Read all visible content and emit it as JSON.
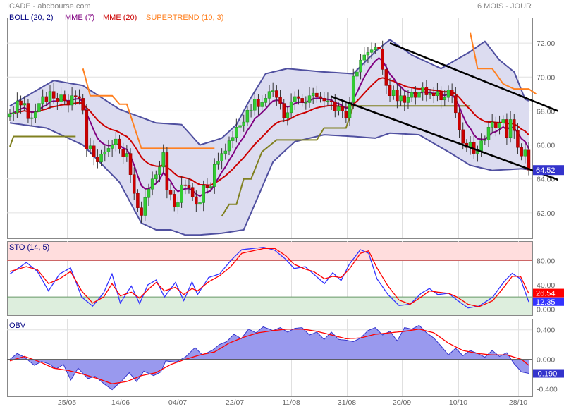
{
  "header": {
    "title": "ICADE - abcbourse.com",
    "period": "6 MOIS - JOUR"
  },
  "colors": {
    "price_up": "#33cc33",
    "price_down": "#cc0000",
    "boll_band": "#5050a0",
    "boll_fill": "#dcdcf0",
    "mme7": "#800080",
    "mme20": "#cc0000",
    "supertrend_up": "#808020",
    "supertrend_down": "#ff8020",
    "channel": "#000000",
    "sto_k": "#3333ff",
    "sto_d": "#ff0000",
    "sto_overbought_zone": "#ffdddd",
    "sto_oversold_zone": "#ddeedd",
    "obv_fill": "#9999ee",
    "obv_line": "#3333cc",
    "obv_signal": "#ff0000"
  },
  "chart_data": [
    {
      "type": "candlestick",
      "legend": [
        "BOLL (20, 2)",
        "MME (7)",
        "MME (20)",
        "SUPERTREND (10, 3)"
      ],
      "y_ticks": [
        "72.00",
        "70.00",
        "68.00",
        "66.00",
        "64.00",
        "62.00"
      ],
      "ylim": [
        60.5,
        73.5
      ],
      "last_price_label": "64.52",
      "x_ticks": [
        "25/05",
        "14/06",
        "04/07",
        "22/07",
        "11/08",
        "31/08",
        "20/09",
        "10/10",
        "28/10"
      ],
      "closes": [
        67.85,
        67.9,
        68.6,
        68.35,
        68.45,
        67.55,
        67.6,
        67.95,
        68.45,
        68.85,
        68.55,
        69.15,
        68.75,
        68.55,
        68.95,
        68.6,
        68.35,
        68.9,
        68.85,
        68.75,
        68.05,
        65.75,
        65.95,
        65.3,
        65.0,
        65.45,
        65.6,
        65.8,
        66.0,
        66.35,
        65.75,
        65.3,
        65.5,
        64.25,
        63.15,
        62.3,
        61.85,
        62.9,
        63.4,
        64.0,
        64.25,
        64.7,
        65.55,
        63.35,
        63.1,
        62.35,
        62.6,
        63.65,
        63.6,
        63.5,
        62.95,
        62.5,
        62.6,
        63.6,
        63.5,
        63.55,
        64.85,
        65.05,
        65.5,
        65.65,
        66.25,
        66.45,
        67.05,
        67.15,
        67.35,
        68.05,
        68.05,
        68.7,
        68.25,
        68.5,
        68.75,
        69.15,
        69.2,
        68.8,
        68.45,
        67.6,
        67.9,
        68.55,
        68.85,
        68.75,
        68.5,
        68.5,
        68.9,
        69.05,
        68.85,
        68.75,
        68.6,
        68.6,
        68.55,
        68.0,
        68.25,
        68.0,
        67.6,
        68.5,
        70.05,
        70.3,
        71.0,
        71.3,
        71.45,
        71.6,
        71.75,
        71.65,
        70.45,
        69.5,
        68.9,
        69.25,
        68.6,
        68.9,
        68.5,
        68.8,
        69.1,
        68.8,
        69.1,
        69.4,
        68.95,
        69.05,
        68.9,
        69.15,
        68.65,
        68.8,
        69.25,
        68.9,
        67.9,
        66.9,
        66.1,
        65.85,
        66.15,
        65.5,
        65.65,
        66.25,
        66.3,
        67.05,
        67.35,
        67.0,
        67.3,
        67.5,
        66.45,
        67.5,
        66.85,
        65.85,
        65.35,
        65.7,
        64.52
      ],
      "bollinger": {
        "upper_anchors": [
          [
            0,
            68.3
          ],
          [
            12,
            69.8
          ],
          [
            20,
            69.5
          ],
          [
            30,
            68.1
          ],
          [
            40,
            67.3
          ],
          [
            47,
            67.2
          ],
          [
            52,
            66.0
          ],
          [
            58,
            66.4
          ],
          [
            62,
            67.2
          ],
          [
            66,
            68.8
          ],
          [
            70,
            70.2
          ],
          [
            76,
            70.5
          ],
          [
            86,
            70.3
          ],
          [
            94,
            70.2
          ],
          [
            100,
            71.5
          ],
          [
            104,
            72.2
          ],
          [
            110,
            71.3
          ],
          [
            118,
            70.5
          ],
          [
            126,
            71.5
          ],
          [
            130,
            72.1
          ],
          [
            134,
            71.0
          ],
          [
            138,
            70.3
          ],
          [
            141,
            68.7
          ],
          [
            144,
            68.4
          ]
        ],
        "lower_anchors": [
          [
            0,
            67.3
          ],
          [
            10,
            67.0
          ],
          [
            20,
            66.0
          ],
          [
            30,
            63.8
          ],
          [
            36,
            61.4
          ],
          [
            40,
            61.0
          ],
          [
            44,
            61.0
          ],
          [
            48,
            60.7
          ],
          [
            52,
            60.7
          ],
          [
            58,
            60.8
          ],
          [
            64,
            61.0
          ],
          [
            68,
            63.0
          ],
          [
            72,
            65.0
          ],
          [
            78,
            66.2
          ],
          [
            86,
            66.6
          ],
          [
            94,
            66.5
          ],
          [
            100,
            66.4
          ],
          [
            104,
            66.7
          ],
          [
            112,
            66.6
          ],
          [
            120,
            65.6
          ],
          [
            126,
            64.8
          ],
          [
            132,
            64.5
          ],
          [
            140,
            64.6
          ],
          [
            144,
            64.5
          ]
        ]
      },
      "supertrend": [
        {
          "color_key": "supertrend_up",
          "anchors": [
            [
              0,
              65.9
            ],
            [
              1,
              66.5
            ],
            [
              18,
              66.5
            ]
          ]
        },
        {
          "color_key": "supertrend_down",
          "anchors": [
            [
              20,
              70.5
            ],
            [
              22,
              68.9
            ],
            [
              28,
              68.9
            ],
            [
              30,
              68.4
            ],
            [
              32,
              68.4
            ],
            [
              34,
              67.1
            ],
            [
              36,
              65.8
            ],
            [
              56,
              65.8
            ]
          ]
        },
        {
          "color_key": "supertrend_up",
          "anchors": [
            [
              58,
              61.8
            ],
            [
              60,
              62.5
            ],
            [
              62,
              62.5
            ],
            [
              64,
              64.0
            ],
            [
              66,
              64.0
            ],
            [
              69,
              65.6
            ],
            [
              73,
              66.3
            ],
            [
              84,
              66.3
            ],
            [
              86,
              67.0
            ],
            [
              92,
              67.0
            ],
            [
              94,
              68.3
            ],
            [
              126,
              68.3
            ]
          ]
        },
        {
          "color_key": "supertrend_down",
          "anchors": [
            [
              126,
              72.6
            ],
            [
              128,
              70.5
            ],
            [
              132,
              70.5
            ],
            [
              135,
              69.6
            ],
            [
              138,
              69.3
            ],
            [
              142,
              69.3
            ],
            [
              144,
              69.0
            ]
          ]
        }
      ],
      "channel_upper": [
        [
          104,
          72.0
        ],
        [
          150,
          68.0
        ]
      ],
      "channel_lower": [
        [
          88,
          68.85
        ],
        [
          150,
          63.95
        ]
      ]
    },
    {
      "type": "line",
      "legend": "STO (14, 5)",
      "y_ticks": [
        "80.00",
        "40.00",
        "0.000"
      ],
      "ylim": [
        -10,
        112
      ],
      "overbought": 80,
      "oversold": 20,
      "k_label": "12.35",
      "d_label": "26.54",
      "k_anchors": [
        [
          0,
          58
        ],
        [
          6,
          77
        ],
        [
          10,
          62
        ],
        [
          14,
          30
        ],
        [
          18,
          58
        ],
        [
          22,
          68
        ],
        [
          26,
          20
        ],
        [
          30,
          5
        ],
        [
          34,
          27
        ],
        [
          37,
          58
        ],
        [
          40,
          10
        ],
        [
          44,
          38
        ],
        [
          47,
          9
        ],
        [
          50,
          40
        ],
        [
          53,
          48
        ],
        [
          56,
          20
        ],
        [
          60,
          44
        ],
        [
          63,
          14
        ],
        [
          66,
          45
        ],
        [
          68,
          24
        ],
        [
          72,
          52
        ],
        [
          76,
          58
        ],
        [
          80,
          80
        ],
        [
          84,
          98
        ],
        [
          88,
          100
        ],
        [
          92,
          102
        ],
        [
          96,
          97
        ],
        [
          100,
          82
        ],
        [
          103,
          67
        ],
        [
          107,
          70
        ],
        [
          110,
          58
        ],
        [
          114,
          42
        ],
        [
          117,
          60
        ],
        [
          120,
          47
        ],
        [
          123,
          74
        ],
        [
          127,
          98
        ],
        [
          130,
          92
        ],
        [
          133,
          50
        ],
        [
          137,
          24
        ],
        [
          141,
          6
        ],
        [
          145,
          8
        ],
        [
          149,
          26
        ],
        [
          152,
          34
        ],
        [
          155,
          24
        ],
        [
          159,
          26
        ],
        [
          162,
          15
        ],
        [
          166,
          2
        ],
        [
          170,
          5
        ],
        [
          175,
          20
        ],
        [
          179,
          45
        ],
        [
          182,
          59
        ],
        [
          185,
          50
        ],
        [
          188,
          12
        ]
      ],
      "d_anchors": [
        [
          0,
          62
        ],
        [
          6,
          70
        ],
        [
          10,
          65
        ],
        [
          14,
          42
        ],
        [
          18,
          50
        ],
        [
          22,
          62
        ],
        [
          26,
          30
        ],
        [
          30,
          10
        ],
        [
          34,
          20
        ],
        [
          37,
          42
        ],
        [
          40,
          22
        ],
        [
          44,
          28
        ],
        [
          47,
          18
        ],
        [
          50,
          32
        ],
        [
          53,
          44
        ],
        [
          56,
          30
        ],
        [
          60,
          36
        ],
        [
          63,
          24
        ],
        [
          66,
          34
        ],
        [
          68,
          30
        ],
        [
          72,
          45
        ],
        [
          76,
          55
        ],
        [
          80,
          70
        ],
        [
          84,
          92
        ],
        [
          88,
          96
        ],
        [
          92,
          100
        ],
        [
          96,
          100
        ],
        [
          100,
          88
        ],
        [
          103,
          74
        ],
        [
          107,
          66
        ],
        [
          110,
          62
        ],
        [
          114,
          50
        ],
        [
          117,
          54
        ],
        [
          120,
          52
        ],
        [
          123,
          66
        ],
        [
          127,
          92
        ],
        [
          130,
          96
        ],
        [
          133,
          68
        ],
        [
          137,
          38
        ],
        [
          141,
          15
        ],
        [
          145,
          8
        ],
        [
          149,
          20
        ],
        [
          152,
          30
        ],
        [
          155,
          28
        ],
        [
          159,
          26
        ],
        [
          162,
          20
        ],
        [
          166,
          8
        ],
        [
          170,
          4
        ],
        [
          175,
          14
        ],
        [
          179,
          36
        ],
        [
          182,
          54
        ],
        [
          185,
          54
        ],
        [
          188,
          26
        ]
      ]
    },
    {
      "type": "area",
      "legend": "OBV",
      "y_ticks": [
        "0.400",
        "0.000",
        "-0.400"
      ],
      "ylim": [
        -0.5,
        0.55
      ],
      "last_label": "-0.190",
      "obv_anchors": [
        [
          0,
          0.0
        ],
        [
          3,
          0.08
        ],
        [
          6,
          0.03
        ],
        [
          10,
          -0.08
        ],
        [
          13,
          -0.03
        ],
        [
          16,
          -0.06
        ],
        [
          19,
          -0.13
        ],
        [
          22,
          -0.07
        ],
        [
          25,
          -0.28
        ],
        [
          28,
          -0.12
        ],
        [
          32,
          -0.26
        ],
        [
          35,
          -0.23
        ],
        [
          39,
          -0.34
        ],
        [
          42,
          -0.41
        ],
        [
          46,
          -0.29
        ],
        [
          49,
          -0.18
        ],
        [
          52,
          -0.3
        ],
        [
          55,
          -0.16
        ],
        [
          59,
          -0.22
        ],
        [
          62,
          -0.17
        ],
        [
          64,
          -0.02
        ],
        [
          68,
          -0.04
        ],
        [
          72,
          0.03
        ],
        [
          76,
          0.16
        ],
        [
          79,
          0.06
        ],
        [
          83,
          0.12
        ],
        [
          86,
          0.2
        ],
        [
          89,
          0.24
        ],
        [
          92,
          0.34
        ],
        [
          95,
          0.28
        ],
        [
          98,
          0.41
        ],
        [
          101,
          0.36
        ],
        [
          104,
          0.44
        ],
        [
          108,
          0.39
        ],
        [
          111,
          0.43
        ],
        [
          114,
          0.37
        ],
        [
          117,
          0.42
        ],
        [
          120,
          0.43
        ],
        [
          123,
          0.33
        ],
        [
          126,
          0.37
        ],
        [
          129,
          0.27
        ],
        [
          132,
          0.37
        ],
        [
          135,
          0.27
        ],
        [
          138,
          0.26
        ],
        [
          141,
          0.24
        ],
        [
          144,
          0.29
        ],
        [
          147,
          0.39
        ],
        [
          150,
          0.43
        ],
        [
          153,
          0.33
        ],
        [
          156,
          0.38
        ],
        [
          159,
          0.25
        ],
        [
          162,
          0.43
        ],
        [
          165,
          0.41
        ],
        [
          168,
          0.46
        ],
        [
          171,
          0.36
        ],
        [
          174,
          0.29
        ],
        [
          177,
          0.18
        ],
        [
          180,
          0.06
        ],
        [
          183,
          0.15
        ],
        [
          186,
          0.05
        ],
        [
          189,
          0.12
        ],
        [
          192,
          0.08
        ],
        [
          195,
          0.03
        ],
        [
          198,
          0.12
        ],
        [
          201,
          0.04
        ],
        [
          204,
          0.09
        ],
        [
          207,
          -0.06
        ],
        [
          210,
          -0.17
        ],
        [
          213,
          -0.19
        ]
      ],
      "signal_anchors": [
        [
          0,
          -0.02
        ],
        [
          6,
          0.04
        ],
        [
          12,
          -0.03
        ],
        [
          18,
          -0.12
        ],
        [
          24,
          -0.15
        ],
        [
          30,
          -0.2
        ],
        [
          36,
          -0.26
        ],
        [
          42,
          -0.33
        ],
        [
          48,
          -0.3
        ],
        [
          54,
          -0.22
        ],
        [
          60,
          -0.18
        ],
        [
          66,
          -0.07
        ],
        [
          72,
          0.0
        ],
        [
          78,
          0.06
        ],
        [
          84,
          0.1
        ],
        [
          90,
          0.22
        ],
        [
          96,
          0.3
        ],
        [
          102,
          0.36
        ],
        [
          108,
          0.39
        ],
        [
          114,
          0.41
        ],
        [
          120,
          0.41
        ],
        [
          126,
          0.38
        ],
        [
          132,
          0.33
        ],
        [
          138,
          0.28
        ],
        [
          144,
          0.29
        ],
        [
          150,
          0.34
        ],
        [
          156,
          0.36
        ],
        [
          162,
          0.38
        ],
        [
          168,
          0.41
        ],
        [
          174,
          0.36
        ],
        [
          180,
          0.22
        ],
        [
          186,
          0.12
        ],
        [
          192,
          0.08
        ],
        [
          198,
          0.06
        ],
        [
          204,
          0.06
        ],
        [
          210,
          0.0
        ],
        [
          213,
          -0.08
        ]
      ]
    }
  ]
}
